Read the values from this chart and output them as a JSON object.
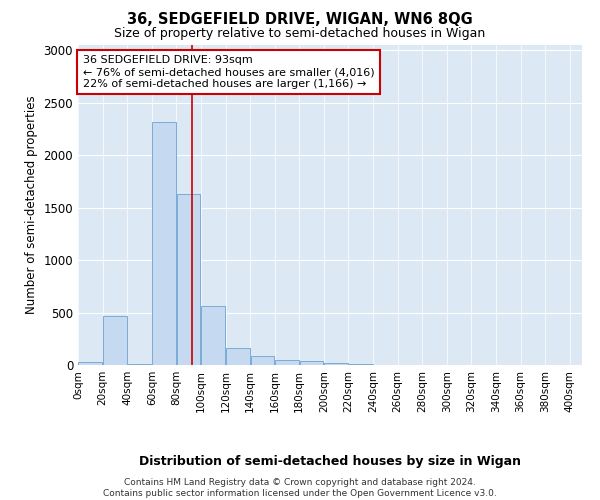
{
  "title1": "36, SEDGEFIELD DRIVE, WIGAN, WN6 8QG",
  "title2": "Size of property relative to semi-detached houses in Wigan",
  "xlabel": "Distribution of semi-detached houses by size in Wigan",
  "ylabel": "Number of semi-detached properties",
  "bin_edges": [
    0,
    20,
    40,
    60,
    80,
    100,
    120,
    140,
    160,
    180,
    200,
    220,
    240,
    260,
    280,
    300,
    320,
    340,
    360,
    380,
    400
  ],
  "bar_heights": [
    25,
    470,
    5,
    2320,
    1630,
    560,
    160,
    90,
    50,
    38,
    18,
    5,
    0,
    0,
    0,
    0,
    0,
    0,
    0,
    0
  ],
  "bar_color": "#c5d9f0",
  "bar_edge_color": "#7aacd4",
  "property_size": 93,
  "property_line_color": "#cc0000",
  "annotation_text": "36 SEDGEFIELD DRIVE: 93sqm\n← 76% of semi-detached houses are smaller (4,016)\n22% of semi-detached houses are larger (1,166) →",
  "annotation_box_facecolor": "#ffffff",
  "annotation_box_edgecolor": "#cc0000",
  "ylim": [
    0,
    3050
  ],
  "yticks": [
    0,
    500,
    1000,
    1500,
    2000,
    2500,
    3000
  ],
  "plot_bg_color": "#dce9f5",
  "fig_bg_color": "#ffffff",
  "grid_color": "#ffffff",
  "footer": "Contains HM Land Registry data © Crown copyright and database right 2024.\nContains public sector information licensed under the Open Government Licence v3.0."
}
